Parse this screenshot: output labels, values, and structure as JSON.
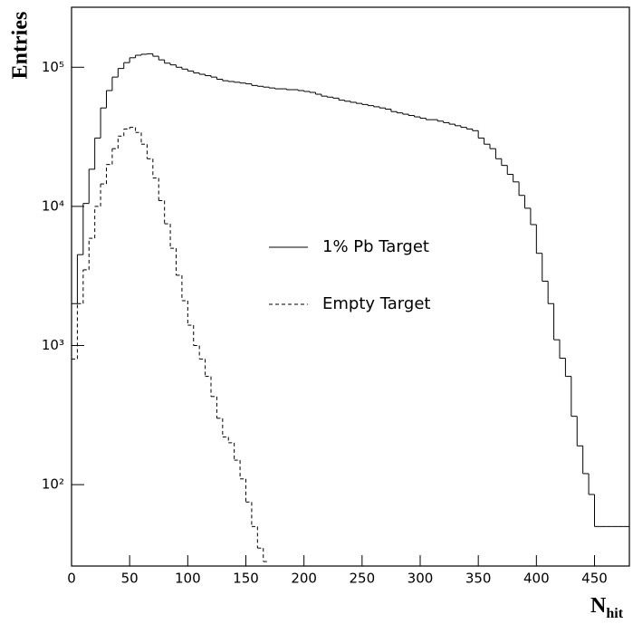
{
  "chart_data": {
    "type": "histogram",
    "y_label": "Entries",
    "x_label": {
      "main": "N",
      "sub": "hit"
    },
    "bins": [
      0,
      5,
      10,
      15,
      20,
      25,
      30,
      35,
      40,
      45,
      50,
      55,
      60,
      65,
      70,
      75,
      80,
      85,
      90,
      95,
      100,
      105,
      110,
      115,
      120,
      125,
      130,
      135,
      140,
      145,
      150,
      155,
      160,
      165,
      170,
      175,
      180,
      185,
      190,
      195,
      200,
      205,
      210,
      215,
      220,
      225,
      230,
      235,
      240,
      245,
      250,
      255,
      260,
      265,
      270,
      275,
      280,
      285,
      290,
      295,
      300,
      305,
      310,
      315,
      320,
      325,
      330,
      335,
      340,
      345,
      350,
      355,
      360,
      365,
      370,
      375,
      380,
      385,
      390,
      395,
      400,
      405,
      410,
      415,
      420,
      425,
      430,
      435,
      440,
      445,
      450,
      455,
      460,
      465,
      470,
      475,
      480
    ],
    "series": [
      {
        "name": "1% Pb Target",
        "color": "#000000",
        "dash": "solid",
        "values": [
          2000,
          4500,
          10500,
          18500,
          31000,
          51000,
          68000,
          85000,
          98000,
          108000,
          117000,
          122000,
          124000,
          125000,
          120000,
          113000,
          107000,
          104000,
          100000,
          97000,
          94000,
          91000,
          89000,
          87000,
          85000,
          82000,
          80000,
          79000,
          78000,
          77000,
          76000,
          74000,
          73000,
          72000,
          71000,
          70000,
          70000,
          69000,
          69000,
          68000,
          67000,
          66000,
          64000,
          62000,
          61000,
          60000,
          58000,
          57000,
          56000,
          55000,
          54000,
          53000,
          52000,
          51000,
          50000,
          48000,
          47000,
          46000,
          45000,
          44000,
          43000,
          42000,
          42000,
          41000,
          40000,
          39000,
          38000,
          37000,
          36000,
          35000,
          31000,
          28000,
          26000,
          22000,
          19700,
          17000,
          15000,
          12000,
          9700,
          7400,
          4600,
          2900,
          2000,
          1100,
          810,
          600,
          310,
          190,
          120,
          85,
          50,
          50,
          50,
          50,
          50,
          50
        ]
      },
      {
        "name": "Empty Target",
        "color": "#000000",
        "dash": "dashed",
        "values": [
          800,
          2000,
          3500,
          5900,
          10000,
          14500,
          20000,
          26000,
          32000,
          36000,
          37000,
          34000,
          28000,
          22000,
          16000,
          11000,
          7500,
          5000,
          3200,
          2100,
          1400,
          1000,
          800,
          600,
          430,
          300,
          220,
          200,
          150,
          110,
          75,
          50,
          35,
          28,
          null,
          null,
          null,
          null,
          null,
          null,
          null,
          null,
          null,
          null,
          null,
          null,
          null,
          null,
          null,
          null,
          null,
          null,
          null,
          null,
          null,
          null,
          null,
          null,
          null,
          null,
          null,
          null,
          null,
          null,
          null,
          null,
          null,
          null,
          null,
          null,
          null,
          null,
          null,
          null,
          null,
          null,
          null,
          null,
          null,
          null,
          null,
          null,
          null,
          null,
          null,
          null,
          null,
          null,
          null,
          null,
          null,
          null,
          null,
          null,
          null,
          null
        ]
      }
    ],
    "xlim": [
      0,
      480
    ],
    "ylim": [
      26,
      270000
    ],
    "log_y": true,
    "xticks": [
      0,
      50,
      100,
      150,
      200,
      250,
      300,
      350,
      400,
      450
    ],
    "yticks": [
      {
        "value": 100,
        "label": "10²"
      },
      {
        "value": 1000,
        "label": "10³"
      },
      {
        "value": 10000,
        "label": "10⁴"
      },
      {
        "value": 100000,
        "label": "10⁵"
      }
    ]
  }
}
